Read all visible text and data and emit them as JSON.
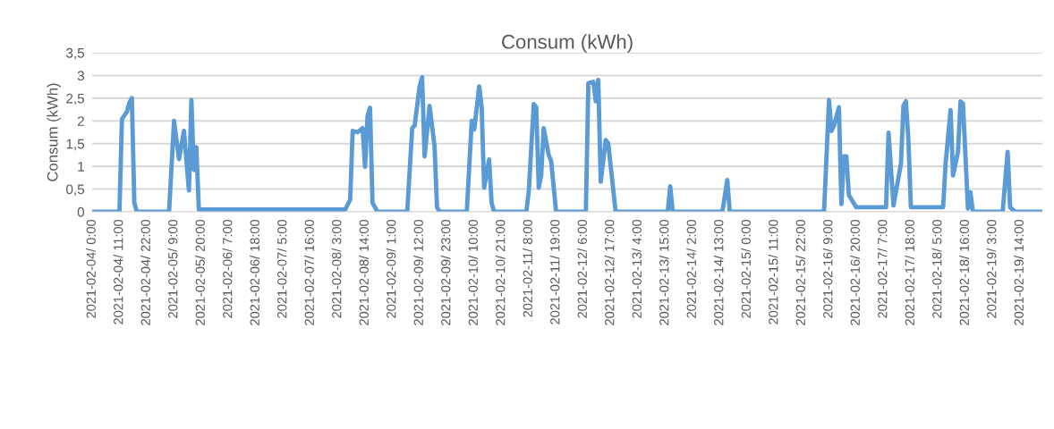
{
  "chart_data": {
    "type": "line",
    "title": "Consum (kWh)",
    "ylabel": "Consum (kWh)",
    "x": [
      "2021-02-04T00:00",
      "2021-02-04T11:00",
      "2021-02-04T12:00",
      "2021-02-04T14:00",
      "2021-02-04T15:00",
      "2021-02-04T16:00",
      "2021-02-04T17:00",
      "2021-02-04T18:00",
      "2021-02-05T07:00",
      "2021-02-05T09:00",
      "2021-02-05T11:00",
      "2021-02-05T13:00",
      "2021-02-05T15:00",
      "2021-02-05T16:00",
      "2021-02-05T17:00",
      "2021-02-05T18:00",
      "2021-02-05T19:00",
      "2021-02-08T06:00",
      "2021-02-08T08:00",
      "2021-02-08T09:00",
      "2021-02-08T11:00",
      "2021-02-08T13:00",
      "2021-02-08T14:00",
      "2021-02-08T15:00",
      "2021-02-08T16:00",
      "2021-02-08T17:00",
      "2021-02-08T18:00",
      "2021-02-08T19:00",
      "2021-02-09T07:00",
      "2021-02-09T09:00",
      "2021-02-09T10:00",
      "2021-02-09T12:00",
      "2021-02-09T13:00",
      "2021-02-09T14:00",
      "2021-02-09T16:00",
      "2021-02-09T18:00",
      "2021-02-09T19:00",
      "2021-02-09T20:00",
      "2021-02-10T07:00",
      "2021-02-10T09:00",
      "2021-02-10T10:00",
      "2021-02-10T12:00",
      "2021-02-10T13:00",
      "2021-02-10T14:00",
      "2021-02-10T16:00",
      "2021-02-10T17:00",
      "2021-02-10T18:00",
      "2021-02-11T07:00",
      "2021-02-11T08:00",
      "2021-02-11T10:00",
      "2021-02-11T11:00",
      "2021-02-11T12:00",
      "2021-02-11T13:00",
      "2021-02-11T14:00",
      "2021-02-11T16:00",
      "2021-02-11T17:00",
      "2021-02-11T19:00",
      "2021-02-12T07:00",
      "2021-02-12T08:00",
      "2021-02-12T10:00",
      "2021-02-12T11:00",
      "2021-02-12T12:00",
      "2021-02-12T13:00",
      "2021-02-12T15:00",
      "2021-02-12T16:00",
      "2021-02-12T19:00",
      "2021-02-13T16:00",
      "2021-02-13T17:00",
      "2021-02-13T18:00",
      "2021-02-14T14:00",
      "2021-02-14T16:00",
      "2021-02-14T17:00",
      "2021-02-16T07:00",
      "2021-02-16T09:00",
      "2021-02-16T10:00",
      "2021-02-16T11:00",
      "2021-02-16T13:00",
      "2021-02-16T14:00",
      "2021-02-16T15:00",
      "2021-02-16T16:00",
      "2021-02-16T17:00",
      "2021-02-16T20:00",
      "2021-02-17T08:00",
      "2021-02-17T09:00",
      "2021-02-17T11:00",
      "2021-02-17T14:00",
      "2021-02-17T15:00",
      "2021-02-17T16:00",
      "2021-02-17T17:00",
      "2021-02-17T18:00",
      "2021-02-17T20:00",
      "2021-02-18T07:00",
      "2021-02-18T08:00",
      "2021-02-18T10:00",
      "2021-02-18T11:00",
      "2021-02-18T13:00",
      "2021-02-18T14:00",
      "2021-02-18T15:00",
      "2021-02-18T17:00",
      "2021-02-18T18:00",
      "2021-02-18T19:00",
      "2021-02-19T07:00",
      "2021-02-19T09:00",
      "2021-02-19T10:00",
      "2021-02-19T12:00",
      "2021-02-19T23:00"
    ],
    "series": [
      {
        "color": "#5b9bd5",
        "values": [
          0,
          0,
          2.04,
          2.2,
          2.4,
          2.5,
          0.2,
          0,
          0,
          2.0,
          1.16,
          1.78,
          0.47,
          2.46,
          0.92,
          1.42,
          0.05,
          0.05,
          0.27,
          1.78,
          1.75,
          1.84,
          0.99,
          2.1,
          2.29,
          0.2,
          0.1,
          0,
          0,
          1.84,
          1.9,
          2.76,
          2.96,
          1.22,
          2.33,
          1.45,
          0.1,
          0,
          0,
          2.0,
          1.81,
          2.76,
          2.3,
          0.53,
          1.15,
          0.2,
          0,
          0,
          0.46,
          2.37,
          2.3,
          0.53,
          0.8,
          1.84,
          1.25,
          1.12,
          0,
          0,
          2.83,
          2.86,
          2.43,
          2.9,
          0.66,
          1.58,
          1.51,
          0,
          0,
          0.56,
          0,
          0,
          0.7,
          0,
          0,
          2.46,
          1.78,
          1.9,
          2.3,
          0.17,
          1.22,
          1.22,
          0.37,
          0.1,
          0.1,
          1.74,
          0.14,
          1.06,
          2.33,
          2.43,
          1.58,
          0.1,
          0.1,
          0.1,
          1.06,
          2.24,
          0.8,
          1.32,
          2.43,
          2.38,
          0.07,
          0.43,
          0,
          0,
          1.32,
          0.1,
          0,
          0
        ]
      }
    ],
    "xlim": [
      "2021-02-04T00:00",
      "2021-02-19T23:00"
    ],
    "xticks": [
      {
        "value": "2021-02-04T00:00",
        "label": "2021-02-04/ 0:00"
      },
      {
        "value": "2021-02-04T11:00",
        "label": "2021-02-04/ 11:00"
      },
      {
        "value": "2021-02-04T22:00",
        "label": "2021-02-04/ 22:00"
      },
      {
        "value": "2021-02-05T09:00",
        "label": "2021-02-05/ 9:00"
      },
      {
        "value": "2021-02-05T20:00",
        "label": "2021-02-05/ 20:00"
      },
      {
        "value": "2021-02-06T07:00",
        "label": "2021-02-06/ 7:00"
      },
      {
        "value": "2021-02-06T18:00",
        "label": "2021-02-06/ 18:00"
      },
      {
        "value": "2021-02-07T05:00",
        "label": "2021-02-07/ 5:00"
      },
      {
        "value": "2021-02-07T16:00",
        "label": "2021-02-07/ 16:00"
      },
      {
        "value": "2021-02-08T03:00",
        "label": "2021-02-08/ 3:00"
      },
      {
        "value": "2021-02-08T14:00",
        "label": "2021-02-08/ 14:00"
      },
      {
        "value": "2021-02-09T01:00",
        "label": "2021-02-09/ 1:00"
      },
      {
        "value": "2021-02-09T12:00",
        "label": "2021-02-09/ 12:00"
      },
      {
        "value": "2021-02-09T23:00",
        "label": "2021-02-09/ 23:00"
      },
      {
        "value": "2021-02-10T10:00",
        "label": "2021-02-10/ 10:00"
      },
      {
        "value": "2021-02-10T21:00",
        "label": "2021-02-10/ 21:00"
      },
      {
        "value": "2021-02-11T08:00",
        "label": "2021-02-11/ 8:00"
      },
      {
        "value": "2021-02-11T19:00",
        "label": "2021-02-11/ 19:00"
      },
      {
        "value": "2021-02-12T06:00",
        "label": "2021-02-12/ 6:00"
      },
      {
        "value": "2021-02-12T17:00",
        "label": "2021-02-12/ 17:00"
      },
      {
        "value": "2021-02-13T04:00",
        "label": "2021-02-13/ 4:00"
      },
      {
        "value": "2021-02-13T15:00",
        "label": "2021-02-13/ 15:00"
      },
      {
        "value": "2021-02-14T02:00",
        "label": "2021-02-14/ 2:00"
      },
      {
        "value": "2021-02-14T13:00",
        "label": "2021-02-14/ 13:00"
      },
      {
        "value": "2021-02-15T00:00",
        "label": "2021-02-15/ 0:00"
      },
      {
        "value": "2021-02-15T11:00",
        "label": "2021-02-15/ 11:00"
      },
      {
        "value": "2021-02-15T22:00",
        "label": "2021-02-15/ 22:00"
      },
      {
        "value": "2021-02-16T09:00",
        "label": "2021-02-16/ 9:00"
      },
      {
        "value": "2021-02-16T20:00",
        "label": "2021-02-16/ 20:00"
      },
      {
        "value": "2021-02-17T07:00",
        "label": "2021-02-17/ 7:00"
      },
      {
        "value": "2021-02-17T18:00",
        "label": "2021-02-17/ 18:00"
      },
      {
        "value": "2021-02-18T05:00",
        "label": "2021-02-18/ 5:00"
      },
      {
        "value": "2021-02-18T16:00",
        "label": "2021-02-18/ 16:00"
      },
      {
        "value": "2021-02-19T03:00",
        "label": "2021-02-19/ 3:00"
      },
      {
        "value": "2021-02-19T14:00",
        "label": "2021-02-19/ 14:00"
      }
    ],
    "ylim": [
      0,
      3.5
    ],
    "yticks": [
      0,
      {
        "value": 0.5,
        "label": "0,5"
      },
      1,
      {
        "value": 1.5,
        "label": "1,5"
      },
      2,
      {
        "value": 2.5,
        "label": "2,5"
      },
      3,
      {
        "value": 3.5,
        "label": "3,5"
      }
    ],
    "grid": "y",
    "marker": "none",
    "line_style": "solid"
  }
}
